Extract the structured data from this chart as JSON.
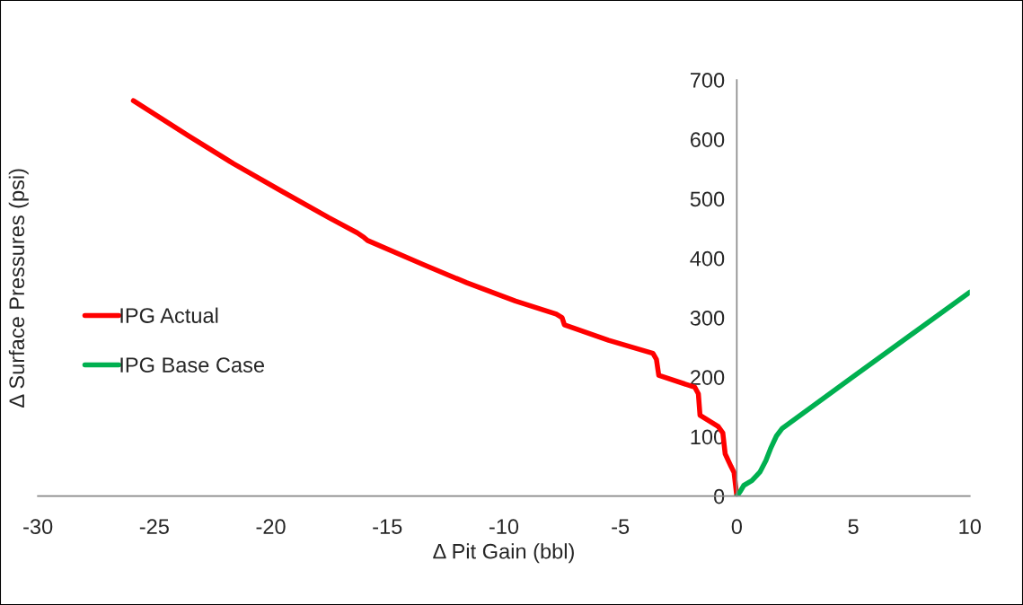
{
  "chart_data": {
    "type": "line",
    "xlabel": "Δ Pit Gain (bbl)",
    "ylabel": "Δ Surface Pressures (psi)",
    "xlim": [
      -30,
      10
    ],
    "xticks": [
      -30,
      -25,
      -20,
      -15,
      -10,
      -5,
      0,
      5,
      10
    ],
    "ylim": [
      0,
      700
    ],
    "yticks": [
      0,
      100,
      200,
      300,
      400,
      500,
      600,
      700
    ],
    "grid": false,
    "legend": "left",
    "series": [
      {
        "name": "IPG Actual",
        "color": "#ff0000",
        "x": [
          -25.9,
          -23.5,
          -21.6,
          -19.5,
          -17.5,
          -16.3,
          -16.0,
          -15.85,
          -13.5,
          -11.6,
          -9.5,
          -7.75,
          -7.5,
          -7.4,
          -5.5,
          -3.6,
          -3.45,
          -3.35,
          -1.8,
          -1.65,
          -1.58,
          -0.8,
          -0.6,
          -0.5,
          -0.25,
          -0.12,
          0
        ],
        "values": [
          665,
          605,
          559,
          512,
          468,
          443,
          435,
          430,
          390,
          359,
          328,
          306,
          300,
          288,
          262,
          240,
          230,
          203,
          183,
          172,
          136,
          117,
          106,
          71,
          50,
          40,
          0
        ]
      },
      {
        "name": "IPG Base Case",
        "color": "#00b050",
        "x": [
          0,
          0.15,
          0.3,
          0.65,
          1.0,
          1.25,
          1.45,
          1.7,
          1.95,
          5,
          10
        ],
        "values": [
          0,
          8,
          18,
          26,
          41,
          60,
          80,
          101,
          114,
          201,
          343
        ]
      }
    ]
  }
}
